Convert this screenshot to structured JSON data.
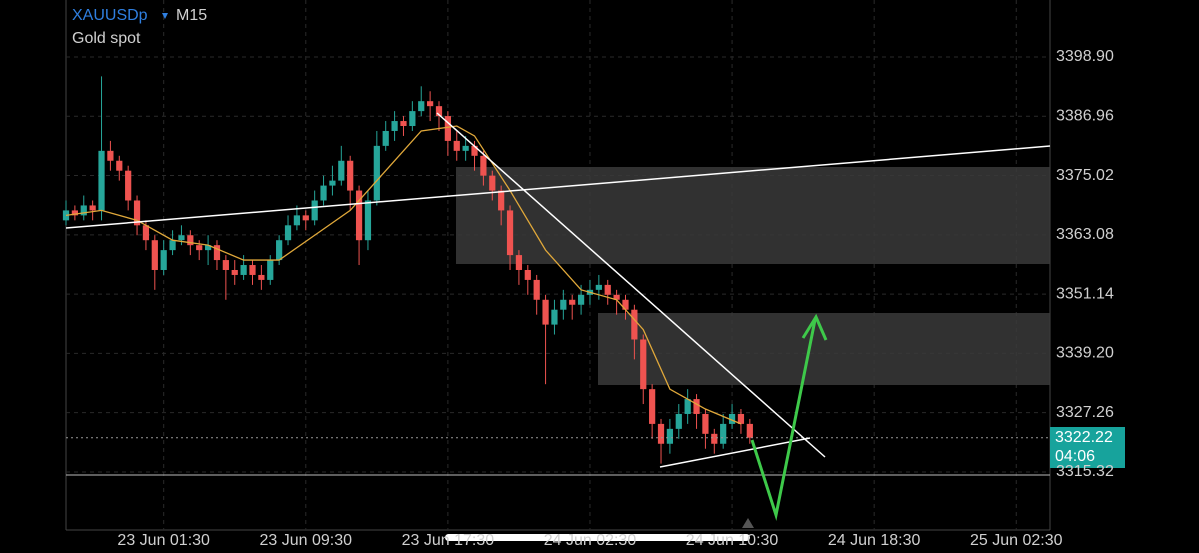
{
  "chart_data": {
    "type": "candlestick",
    "symbol": "XAUUSDp",
    "timeframe": "M15",
    "subtitle": "Gold spot",
    "x": [
      0,
      2,
      4,
      6,
      8,
      10,
      12,
      14,
      16,
      18,
      20,
      22,
      24,
      26,
      28,
      30,
      32,
      34,
      36,
      38,
      40,
      42,
      44,
      46,
      48,
      50,
      52,
      54,
      56,
      58,
      60,
      62,
      64,
      66,
      68,
      70,
      72,
      74,
      76,
      78,
      80,
      82,
      84,
      86,
      88,
      90,
      92,
      94,
      96,
      98,
      100,
      102,
      104,
      106,
      108,
      110,
      112,
      114,
      116,
      118,
      120,
      122,
      124,
      126,
      128,
      130,
      132,
      134,
      136,
      138,
      140,
      142,
      144,
      146,
      148,
      150,
      152,
      154
    ],
    "ohlc": [
      [
        3366,
        3370,
        3365,
        3368
      ],
      [
        3368,
        3369,
        3366,
        3367
      ],
      [
        3367,
        3371,
        3366,
        3369
      ],
      [
        3369,
        3370,
        3366,
        3368
      ],
      [
        3368,
        3395,
        3366,
        3380
      ],
      [
        3380,
        3382,
        3376,
        3378
      ],
      [
        3378,
        3379,
        3374,
        3376
      ],
      [
        3376,
        3377,
        3368,
        3370
      ],
      [
        3370,
        3371,
        3363,
        3365
      ],
      [
        3365,
        3366,
        3360,
        3362
      ],
      [
        3362,
        3363,
        3352,
        3356
      ],
      [
        3356,
        3362,
        3355,
        3360
      ],
      [
        3360,
        3364,
        3359,
        3362
      ],
      [
        3362,
        3365,
        3361,
        3363
      ],
      [
        3363,
        3364,
        3359,
        3361
      ],
      [
        3361,
        3362,
        3358,
        3360
      ],
      [
        3360,
        3363,
        3357,
        3361
      ],
      [
        3361,
        3362,
        3356,
        3358
      ],
      [
        3358,
        3359,
        3350,
        3356
      ],
      [
        3356,
        3358,
        3353,
        3355
      ],
      [
        3355,
        3359,
        3354,
        3357
      ],
      [
        3357,
        3358,
        3353,
        3355
      ],
      [
        3355,
        3357,
        3352,
        3354
      ],
      [
        3354,
        3359,
        3353,
        3358
      ],
      [
        3358,
        3363,
        3357,
        3362
      ],
      [
        3362,
        3367,
        3361,
        3365
      ],
      [
        3365,
        3369,
        3364,
        3367
      ],
      [
        3367,
        3368,
        3364,
        3366
      ],
      [
        3366,
        3372,
        3365,
        3370
      ],
      [
        3370,
        3375,
        3369,
        3373
      ],
      [
        3373,
        3377,
        3371,
        3374
      ],
      [
        3374,
        3381,
        3373,
        3378
      ],
      [
        3378,
        3379,
        3368,
        3372
      ],
      [
        3372,
        3373,
        3357,
        3362
      ],
      [
        3362,
        3372,
        3360,
        3370
      ],
      [
        3370,
        3384,
        3369,
        3381
      ],
      [
        3381,
        3386,
        3380,
        3384
      ],
      [
        3384,
        3388,
        3382,
        3386
      ],
      [
        3386,
        3387,
        3383,
        3385
      ],
      [
        3385,
        3390,
        3384,
        3388
      ],
      [
        3388,
        3393,
        3387,
        3390
      ],
      [
        3390,
        3392,
        3386,
        3389
      ],
      [
        3389,
        3390,
        3384,
        3387
      ],
      [
        3387,
        3388,
        3379,
        3382
      ],
      [
        3382,
        3384,
        3378,
        3380
      ],
      [
        3380,
        3383,
        3378,
        3381
      ],
      [
        3381,
        3382,
        3376,
        3379
      ],
      [
        3379,
        3380,
        3373,
        3375
      ],
      [
        3375,
        3376,
        3370,
        3372
      ],
      [
        3372,
        3373,
        3365,
        3368
      ],
      [
        3368,
        3369,
        3356,
        3359
      ],
      [
        3359,
        3360,
        3353,
        3356
      ],
      [
        3356,
        3357,
        3351,
        3354
      ],
      [
        3354,
        3355,
        3347,
        3350
      ],
      [
        3350,
        3351,
        3333,
        3345
      ],
      [
        3345,
        3350,
        3343,
        3348
      ],
      [
        3348,
        3352,
        3346,
        3350
      ],
      [
        3350,
        3351,
        3346,
        3349
      ],
      [
        3349,
        3353,
        3347,
        3351
      ],
      [
        3351,
        3354,
        3349,
        3352
      ],
      [
        3352,
        3355,
        3350,
        3353
      ],
      [
        3353,
        3354,
        3349,
        3351
      ],
      [
        3351,
        3352,
        3347,
        3350
      ],
      [
        3350,
        3351,
        3346,
        3348
      ],
      [
        3348,
        3349,
        3338,
        3342
      ],
      [
        3342,
        3343,
        3329,
        3332
      ],
      [
        3332,
        3333,
        3322,
        3325
      ],
      [
        3325,
        3326,
        3317,
        3321
      ],
      [
        3321,
        3326,
        3319,
        3324
      ],
      [
        3324,
        3329,
        3322,
        3327
      ],
      [
        3327,
        3332,
        3325,
        3330
      ],
      [
        3330,
        3331,
        3324,
        3327
      ],
      [
        3327,
        3328,
        3320,
        3323
      ],
      [
        3323,
        3324,
        3319,
        3321
      ],
      [
        3321,
        3327,
        3320,
        3325
      ],
      [
        3325,
        3329,
        3324,
        3327
      ],
      [
        3327,
        3328,
        3323,
        3325
      ],
      [
        3325,
        3326,
        3321,
        3322.22
      ]
    ],
    "up_color": "#26a69a",
    "down_color": "#ef5350",
    "ma": {
      "color": "#e0a83a",
      "x": [
        0,
        8,
        16,
        24,
        32,
        40,
        48,
        56,
        64,
        72,
        80,
        88,
        92,
        100,
        108,
        116,
        124,
        130,
        136,
        144,
        152
      ],
      "values": [
        3367,
        3368,
        3366,
        3362,
        3361,
        3358,
        3358,
        3363,
        3368,
        3376,
        3384,
        3385,
        3383,
        3372,
        3360,
        3352,
        3350,
        3344,
        3332,
        3328,
        3325
      ]
    },
    "last_price": 3322.22,
    "countdown": "04:06",
    "xlim": [
      0,
      221.6
    ],
    "xticks": [
      {
        "value": 22,
        "label": "23 Jun 01:30"
      },
      {
        "value": 54,
        "label": "23 Jun 09:30"
      },
      {
        "value": 86,
        "label": "23 Jun 17:30"
      },
      {
        "value": 118,
        "label": "24 Jun 02:30"
      },
      {
        "value": 150,
        "label": "24 Jun 10:30"
      },
      {
        "value": 182,
        "label": "24 Jun 18:30"
      },
      {
        "value": 214,
        "label": "25 Jun 02:30"
      }
    ],
    "ylim": [
      3303.63,
      3410.38
    ],
    "yticks": [
      {
        "value": 3398.9,
        "label": "3398.90"
      },
      3386.96,
      3375.02,
      3363.08,
      3351.14,
      {
        "value": 3339.2,
        "label": "3339.20"
      },
      3327.26,
      3315.32
    ],
    "grid": true
  }
}
